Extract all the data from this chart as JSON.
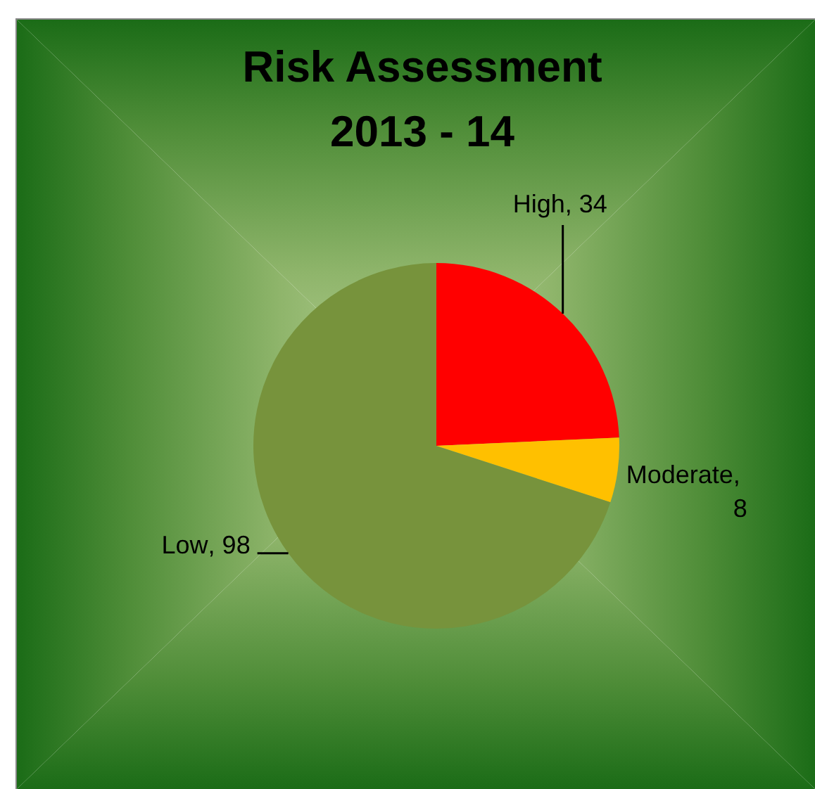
{
  "chart_data": {
    "type": "pie",
    "title": "Risk Assessment 2013 - 14",
    "categories": [
      "High",
      "Moderate",
      "Low"
    ],
    "values": [
      34,
      8,
      98
    ],
    "colors": [
      "#ff0000",
      "#ffc000",
      "#77933c"
    ],
    "value_labels": [
      ", 34",
      ", 8",
      ", 98"
    ]
  }
}
